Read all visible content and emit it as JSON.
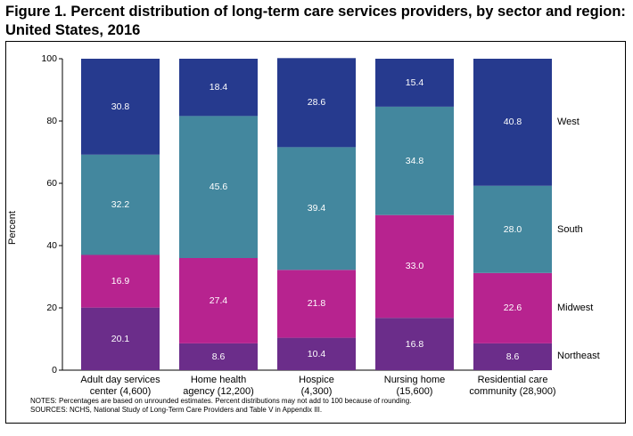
{
  "title": "Figure 1. Percent distribution of long-term care services providers, by sector and region: United States, 2016",
  "chart_data": {
    "type": "bar",
    "stacked": true,
    "categories": [
      [
        "Adult day services",
        "center (4,600)"
      ],
      [
        "Home health",
        "agency (12,200)"
      ],
      [
        "Hospice",
        "(4,300)"
      ],
      [
        "Nursing home",
        "(15,600)"
      ],
      [
        "Residential care",
        "community (28,900)"
      ]
    ],
    "series": [
      {
        "name": "Northeast",
        "color": "#6b2d8a",
        "values": [
          20.1,
          8.6,
          10.4,
          16.8,
          8.6
        ],
        "labels": [
          "20.1",
          "8.6",
          "10.4",
          "16.8",
          "8.6"
        ]
      },
      {
        "name": "Midwest",
        "color": "#b7238f",
        "values": [
          16.9,
          27.4,
          21.8,
          33.0,
          22.6
        ],
        "labels": [
          "16.9",
          "27.4",
          "21.8",
          "33.0",
          "22.6"
        ]
      },
      {
        "name": "South",
        "color": "#43879e",
        "values": [
          32.2,
          45.6,
          39.4,
          34.8,
          28.0
        ],
        "labels": [
          "32.2",
          "45.6",
          "39.4",
          "34.8",
          "28.0"
        ]
      },
      {
        "name": "West",
        "color": "#263a8e",
        "values": [
          30.8,
          18.4,
          28.6,
          15.4,
          40.8
        ],
        "labels": [
          "30.8",
          "18.4",
          "28.6",
          "15.4",
          "40.8"
        ]
      }
    ],
    "ylabel": "Percent",
    "ylim": [
      0,
      100
    ],
    "yticks": [
      "0",
      "20",
      "40",
      "60",
      "80",
      "100"
    ],
    "legend_position": "right"
  },
  "notes": [
    "NOTES: Percentages are based on unrounded estimates. Percent distributions may not add to 100 because of rounding.",
    "SOURCES: NCHS, National Study of Long-Term Care Providers and Table V in Appendix III."
  ]
}
